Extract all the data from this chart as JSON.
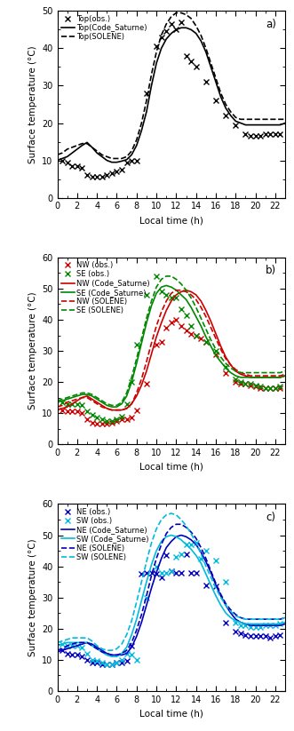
{
  "panel_a": {
    "label": "a)",
    "ylim": [
      0,
      50
    ],
    "yticks": [
      0,
      10,
      20,
      30,
      40,
      50
    ],
    "obs_x": [
      0.5,
      1.0,
      1.5,
      2.0,
      2.5,
      3.0,
      3.5,
      4.0,
      4.5,
      5.0,
      5.5,
      6.0,
      6.5,
      7.0,
      7.5,
      8.0,
      9.0,
      10.0,
      10.5,
      11.0,
      11.5,
      12.0,
      12.5,
      13.0,
      13.5,
      14.0,
      15.0,
      16.0,
      17.0,
      18.0,
      19.0,
      19.5,
      20.0,
      20.5,
      21.0,
      21.5,
      22.0,
      22.5
    ],
    "obs_y": [
      10.0,
      9.5,
      8.5,
      8.5,
      8.0,
      6.0,
      5.5,
      5.5,
      5.5,
      6.0,
      6.5,
      7.0,
      7.5,
      9.5,
      10.0,
      10.0,
      28.0,
      40.5,
      43.0,
      44.5,
      46.5,
      45.0,
      47.0,
      38.0,
      36.5,
      35.0,
      31.0,
      26.0,
      22.0,
      19.5,
      17.0,
      16.5,
      16.5,
      16.5,
      17.0,
      17.0,
      17.0,
      17.0
    ],
    "cs_x": [
      0,
      0.5,
      1.0,
      1.5,
      2.0,
      2.5,
      3.0,
      3.5,
      4.0,
      4.5,
      5.0,
      5.5,
      6.0,
      6.5,
      7.0,
      7.5,
      8.0,
      8.5,
      9.0,
      9.5,
      10.0,
      10.5,
      11.0,
      11.5,
      12.0,
      12.5,
      13.0,
      13.5,
      14.0,
      14.5,
      15.0,
      15.5,
      16.0,
      16.5,
      17.0,
      17.5,
      18.0,
      18.5,
      19.0,
      19.5,
      20.0,
      20.5,
      21.0,
      21.5,
      22.0,
      22.5,
      23.0
    ],
    "cs_y": [
      10.0,
      10.5,
      11.0,
      12.0,
      13.0,
      14.0,
      14.8,
      13.5,
      12.0,
      11.0,
      10.0,
      9.5,
      9.5,
      9.8,
      10.2,
      11.5,
      14.0,
      18.0,
      23.0,
      30.0,
      36.0,
      40.0,
      42.5,
      44.0,
      45.0,
      45.5,
      45.5,
      45.0,
      44.0,
      42.0,
      39.0,
      35.0,
      31.0,
      27.0,
      24.0,
      22.0,
      20.5,
      20.0,
      19.5,
      19.5,
      19.5,
      19.5,
      19.5,
      19.5,
      19.5,
      19.5,
      20.0
    ],
    "sol_x": [
      0,
      0.5,
      1.0,
      1.5,
      2.0,
      2.5,
      3.0,
      3.5,
      4.0,
      4.5,
      5.0,
      5.5,
      6.0,
      6.5,
      7.0,
      7.5,
      8.0,
      8.5,
      9.0,
      9.5,
      10.0,
      10.5,
      11.0,
      11.5,
      12.0,
      12.5,
      13.0,
      13.5,
      14.0,
      14.5,
      15.0,
      15.5,
      16.0,
      16.5,
      17.0,
      17.5,
      18.0,
      18.5,
      19.0,
      19.5,
      20.0,
      20.5,
      21.0,
      21.5,
      22.0,
      22.5,
      23.0
    ],
    "sol_y": [
      11.5,
      12.0,
      13.0,
      13.5,
      14.0,
      14.5,
      14.5,
      13.5,
      12.5,
      11.5,
      11.0,
      10.5,
      10.5,
      10.5,
      11.0,
      12.5,
      15.5,
      20.0,
      26.0,
      33.0,
      39.0,
      43.5,
      46.5,
      48.5,
      49.5,
      49.5,
      49.0,
      48.0,
      46.0,
      43.5,
      40.0,
      36.0,
      32.0,
      28.0,
      25.0,
      23.0,
      21.5,
      21.0,
      21.0,
      21.0,
      21.0,
      21.0,
      21.0,
      21.0,
      21.0,
      21.0,
      21.0
    ],
    "legend": [
      "Top(obs.)",
      "Top(Code_Saturne)",
      "Top(SOLENE)"
    ]
  },
  "panel_b": {
    "label": "b)",
    "ylim": [
      0,
      60
    ],
    "yticks": [
      0,
      10,
      20,
      30,
      40,
      50,
      60
    ],
    "nw_obs_x": [
      0.5,
      1.0,
      1.5,
      2.0,
      2.5,
      3.0,
      3.5,
      4.0,
      4.5,
      5.0,
      5.5,
      6.0,
      6.5,
      7.0,
      7.5,
      8.0,
      9.0,
      10.0,
      10.5,
      11.0,
      11.5,
      12.0,
      12.5,
      13.0,
      13.5,
      14.0,
      14.5,
      15.0,
      16.0,
      17.0,
      18.0,
      18.5,
      19.0,
      19.5,
      20.0,
      20.5,
      21.0,
      21.5,
      22.0,
      22.5
    ],
    "nw_obs_y": [
      11.0,
      10.5,
      10.5,
      10.5,
      10.0,
      8.0,
      7.0,
      6.5,
      6.5,
      6.5,
      7.0,
      7.5,
      8.0,
      8.0,
      8.5,
      11.0,
      19.5,
      32.0,
      33.0,
      37.5,
      39.0,
      40.0,
      38.0,
      36.5,
      35.5,
      35.0,
      34.0,
      33.0,
      29.0,
      23.0,
      20.0,
      19.5,
      19.5,
      19.0,
      18.5,
      18.0,
      18.0,
      18.0,
      18.0,
      18.0
    ],
    "se_obs_x": [
      0.5,
      1.0,
      1.5,
      2.0,
      2.5,
      3.0,
      3.5,
      4.0,
      4.5,
      5.0,
      5.5,
      6.0,
      6.5,
      7.0,
      7.5,
      8.0,
      9.0,
      10.0,
      10.5,
      11.0,
      11.5,
      12.0,
      12.5,
      13.0,
      13.5,
      14.0,
      15.0,
      16.0,
      17.0,
      18.0,
      18.5,
      19.0,
      19.5,
      20.0,
      20.5,
      21.0,
      21.5,
      22.0,
      22.5
    ],
    "se_obs_y": [
      13.5,
      13.0,
      13.0,
      13.0,
      12.5,
      10.5,
      9.5,
      8.5,
      8.0,
      7.5,
      7.5,
      8.0,
      9.0,
      13.0,
      20.0,
      32.0,
      48.0,
      54.0,
      49.0,
      48.0,
      47.0,
      47.0,
      43.5,
      41.5,
      38.0,
      35.0,
      33.0,
      30.0,
      25.0,
      21.0,
      20.0,
      19.5,
      19.5,
      19.0,
      18.5,
      18.0,
      18.0,
      18.0,
      18.5
    ],
    "nw_cs_x": [
      0,
      0.5,
      1.0,
      1.5,
      2.0,
      2.5,
      3.0,
      3.5,
      4.0,
      4.5,
      5.0,
      5.5,
      6.0,
      6.5,
      7.0,
      7.5,
      8.0,
      8.5,
      9.0,
      9.5,
      10.0,
      10.5,
      11.0,
      11.5,
      12.0,
      12.5,
      13.0,
      13.5,
      14.0,
      14.5,
      15.0,
      15.5,
      16.0,
      16.5,
      17.0,
      17.5,
      18.0,
      18.5,
      19.0,
      19.5,
      20.0,
      20.5,
      21.0,
      21.5,
      22.0,
      22.5,
      23.0
    ],
    "nw_cs_y": [
      11.0,
      11.5,
      12.0,
      13.0,
      14.0,
      15.0,
      15.5,
      14.5,
      13.5,
      12.5,
      11.5,
      11.0,
      11.0,
      11.0,
      11.5,
      13.0,
      15.5,
      19.0,
      23.5,
      29.0,
      34.5,
      39.0,
      43.0,
      46.0,
      48.0,
      49.0,
      49.5,
      49.0,
      48.0,
      46.0,
      43.0,
      39.5,
      35.5,
      31.5,
      28.0,
      25.5,
      23.5,
      22.5,
      22.0,
      21.5,
      21.5,
      21.5,
      21.5,
      21.5,
      21.5,
      21.5,
      22.0
    ],
    "se_cs_x": [
      0,
      0.5,
      1.0,
      1.5,
      2.0,
      2.5,
      3.0,
      3.5,
      4.0,
      4.5,
      5.0,
      5.5,
      6.0,
      6.5,
      7.0,
      7.5,
      8.0,
      8.5,
      9.0,
      9.5,
      10.0,
      10.5,
      11.0,
      11.5,
      12.0,
      12.5,
      13.0,
      13.5,
      14.0,
      14.5,
      15.0,
      15.5,
      16.0,
      16.5,
      17.0,
      17.5,
      18.0,
      18.5,
      19.0,
      19.5,
      20.0,
      20.5,
      21.0,
      21.5,
      22.0,
      22.5,
      23.0
    ],
    "se_cs_y": [
      13.5,
      14.0,
      14.5,
      15.0,
      15.5,
      16.0,
      16.0,
      15.5,
      14.5,
      13.5,
      12.5,
      12.0,
      12.0,
      13.0,
      15.5,
      20.0,
      26.0,
      32.5,
      39.0,
      44.5,
      48.5,
      50.5,
      51.0,
      50.5,
      49.5,
      48.0,
      46.5,
      44.0,
      41.0,
      38.0,
      34.5,
      31.5,
      28.5,
      26.5,
      24.5,
      23.0,
      22.0,
      21.5,
      21.5,
      21.5,
      21.5,
      21.5,
      21.5,
      21.5,
      21.5,
      21.5,
      22.0
    ],
    "nw_sol_x": [
      0,
      0.5,
      1.0,
      1.5,
      2.0,
      2.5,
      3.0,
      3.5,
      4.0,
      4.5,
      5.0,
      5.5,
      6.0,
      6.5,
      7.0,
      7.5,
      8.0,
      8.5,
      9.0,
      9.5,
      10.0,
      10.5,
      11.0,
      11.5,
      12.0,
      12.5,
      13.0,
      13.5,
      14.0,
      14.5,
      15.0,
      15.5,
      16.0,
      16.5,
      17.0,
      17.5,
      18.0,
      18.5,
      19.0,
      19.5,
      20.0,
      20.5,
      21.0,
      21.5,
      22.0,
      22.5,
      23.0
    ],
    "nw_sol_y": [
      12.0,
      12.5,
      13.5,
      14.0,
      14.5,
      15.0,
      15.0,
      14.0,
      13.0,
      12.0,
      11.5,
      11.0,
      11.0,
      11.0,
      11.5,
      13.0,
      16.5,
      21.0,
      26.5,
      32.5,
      38.0,
      42.5,
      46.0,
      48.5,
      49.5,
      49.5,
      49.0,
      48.0,
      46.5,
      44.0,
      41.0,
      37.5,
      34.0,
      30.5,
      27.5,
      25.5,
      24.0,
      23.0,
      22.5,
      22.0,
      22.0,
      22.0,
      22.0,
      22.0,
      22.0,
      22.0,
      22.5
    ],
    "se_sol_x": [
      0,
      0.5,
      1.0,
      1.5,
      2.0,
      2.5,
      3.0,
      3.5,
      4.0,
      4.5,
      5.0,
      5.5,
      6.0,
      6.5,
      7.0,
      7.5,
      8.0,
      8.5,
      9.0,
      9.5,
      10.0,
      10.5,
      11.0,
      11.5,
      12.0,
      12.5,
      13.0,
      13.5,
      14.0,
      14.5,
      15.0,
      15.5,
      16.0,
      16.5,
      17.0,
      17.5,
      18.0,
      18.5,
      19.0,
      19.5,
      20.0,
      20.5,
      21.0,
      21.5,
      22.0,
      22.5,
      23.0
    ],
    "se_sol_y": [
      14.0,
      14.5,
      15.0,
      15.5,
      16.0,
      16.5,
      16.5,
      16.0,
      15.0,
      14.0,
      13.0,
      12.5,
      12.5,
      13.5,
      16.5,
      21.5,
      27.5,
      34.0,
      40.5,
      46.0,
      50.5,
      53.0,
      54.0,
      54.0,
      53.0,
      51.5,
      49.5,
      47.0,
      44.0,
      40.5,
      37.0,
      33.5,
      30.5,
      28.0,
      26.0,
      24.5,
      23.5,
      23.0,
      23.0,
      23.0,
      23.0,
      23.0,
      23.0,
      23.0,
      23.0,
      23.0,
      23.5
    ],
    "legend": [
      "NW (obs.)",
      "SE (obs.)",
      "NW (Code_Saturne)",
      "SE (Code_Saturne)",
      "NW (SOLENE)",
      "SE (SOLENE)"
    ]
  },
  "panel_c": {
    "label": "c)",
    "ylim": [
      0,
      60
    ],
    "yticks": [
      0,
      10,
      20,
      30,
      40,
      50,
      60
    ],
    "ne_obs_x": [
      0.5,
      1.0,
      1.5,
      2.0,
      2.5,
      3.0,
      3.5,
      4.0,
      4.5,
      5.0,
      5.5,
      6.0,
      6.5,
      7.0,
      7.5,
      8.5,
      9.0,
      9.5,
      10.0,
      10.5,
      11.0,
      11.5,
      12.0,
      12.5,
      13.0,
      13.5,
      14.0,
      15.0,
      16.0,
      17.0,
      18.0,
      18.5,
      19.0,
      19.5,
      20.0,
      20.5,
      21.0,
      21.5,
      22.0,
      22.5
    ],
    "ne_obs_y": [
      13.0,
      12.0,
      11.5,
      11.5,
      11.0,
      10.0,
      9.0,
      9.0,
      8.5,
      8.5,
      8.5,
      9.0,
      9.0,
      9.5,
      14.5,
      37.5,
      38.0,
      38.0,
      37.5,
      36.5,
      43.5,
      38.5,
      38.0,
      38.0,
      44.0,
      38.0,
      38.0,
      34.0,
      33.5,
      22.0,
      19.0,
      18.5,
      18.0,
      17.5,
      17.5,
      17.5,
      17.5,
      17.0,
      17.5,
      18.0
    ],
    "sw_obs_x": [
      0.5,
      1.0,
      1.5,
      2.0,
      2.5,
      3.0,
      3.5,
      4.0,
      4.5,
      5.0,
      5.5,
      6.0,
      6.5,
      7.0,
      7.5,
      8.0,
      9.0,
      10.0,
      10.5,
      11.0,
      11.5,
      12.0,
      12.5,
      13.0,
      13.5,
      14.0,
      14.5,
      15.0,
      16.0,
      17.0,
      18.0,
      18.5,
      19.0,
      19.5,
      20.0,
      20.5,
      21.0,
      21.5,
      22.0,
      22.5
    ],
    "sw_obs_y": [
      15.0,
      14.5,
      14.5,
      14.5,
      14.0,
      12.0,
      10.0,
      9.5,
      9.0,
      8.5,
      8.5,
      9.0,
      10.0,
      12.0,
      11.5,
      10.0,
      30.0,
      40.0,
      38.0,
      38.0,
      38.5,
      43.0,
      44.0,
      47.0,
      47.0,
      47.5,
      42.5,
      45.0,
      42.0,
      35.0,
      22.0,
      21.0,
      21.0,
      20.5,
      20.5,
      20.5,
      21.0,
      21.0,
      21.0,
      21.5
    ],
    "ne_cs_x": [
      0,
      0.5,
      1.0,
      1.5,
      2.0,
      2.5,
      3.0,
      3.5,
      4.0,
      4.5,
      5.0,
      5.5,
      6.0,
      6.5,
      7.0,
      7.5,
      8.0,
      8.5,
      9.0,
      9.5,
      10.0,
      10.5,
      11.0,
      11.5,
      12.0,
      12.5,
      13.0,
      13.5,
      14.0,
      14.5,
      15.0,
      15.5,
      16.0,
      16.5,
      17.0,
      17.5,
      18.0,
      18.5,
      19.0,
      19.5,
      20.0,
      20.5,
      21.0,
      21.5,
      22.0,
      22.5,
      23.0
    ],
    "ne_cs_y": [
      12.5,
      13.0,
      13.5,
      14.0,
      14.5,
      15.0,
      15.5,
      15.0,
      14.0,
      13.0,
      12.0,
      11.5,
      11.5,
      11.5,
      12.0,
      14.0,
      17.5,
      22.0,
      27.5,
      33.0,
      38.0,
      42.5,
      46.0,
      48.0,
      49.5,
      50.0,
      49.5,
      48.5,
      47.0,
      44.5,
      41.5,
      38.0,
      34.0,
      30.5,
      27.5,
      25.0,
      23.0,
      22.0,
      21.5,
      21.0,
      21.0,
      21.0,
      21.0,
      21.0,
      21.0,
      21.0,
      21.5
    ],
    "sw_cs_x": [
      0,
      0.5,
      1.0,
      1.5,
      2.0,
      2.5,
      3.0,
      3.5,
      4.0,
      4.5,
      5.0,
      5.5,
      6.0,
      6.5,
      7.0,
      7.5,
      8.0,
      8.5,
      9.0,
      9.5,
      10.0,
      10.5,
      11.0,
      11.5,
      12.0,
      12.5,
      13.0,
      13.5,
      14.0,
      14.5,
      15.0,
      15.5,
      16.0,
      16.5,
      17.0,
      17.5,
      18.0,
      18.5,
      19.0,
      19.5,
      20.0,
      20.5,
      21.0,
      21.5,
      22.0,
      22.5,
      23.0
    ],
    "sw_cs_y": [
      14.5,
      15.0,
      15.5,
      15.5,
      15.5,
      15.5,
      15.5,
      14.5,
      13.5,
      12.5,
      11.5,
      11.0,
      11.0,
      12.0,
      14.0,
      18.0,
      23.0,
      29.0,
      35.0,
      40.5,
      45.0,
      48.0,
      49.5,
      50.0,
      49.5,
      48.5,
      47.0,
      45.5,
      43.5,
      41.0,
      37.5,
      34.0,
      30.5,
      27.5,
      25.0,
      23.5,
      22.5,
      22.0,
      21.5,
      21.5,
      21.5,
      21.5,
      21.5,
      21.5,
      21.5,
      21.5,
      22.0
    ],
    "ne_sol_x": [
      0,
      0.5,
      1.0,
      1.5,
      2.0,
      2.5,
      3.0,
      3.5,
      4.0,
      4.5,
      5.0,
      5.5,
      6.0,
      6.5,
      7.0,
      7.5,
      8.0,
      8.5,
      9.0,
      9.5,
      10.0,
      10.5,
      11.0,
      11.5,
      12.0,
      12.5,
      13.0,
      13.5,
      14.0,
      14.5,
      15.0,
      15.5,
      16.0,
      16.5,
      17.0,
      17.5,
      18.0,
      18.5,
      19.0,
      19.5,
      20.0,
      20.5,
      21.0,
      21.5,
      22.0,
      22.5,
      23.0
    ],
    "ne_sol_y": [
      13.0,
      13.5,
      14.5,
      15.0,
      15.5,
      15.5,
      15.5,
      14.5,
      13.5,
      12.5,
      12.0,
      11.5,
      11.5,
      12.0,
      13.0,
      15.5,
      19.5,
      24.5,
      30.5,
      37.0,
      42.5,
      47.0,
      50.5,
      52.5,
      53.5,
      53.5,
      52.5,
      51.0,
      49.0,
      46.0,
      42.5,
      38.5,
      34.5,
      31.0,
      28.0,
      26.0,
      24.5,
      23.5,
      23.0,
      23.0,
      23.0,
      23.0,
      23.0,
      23.0,
      23.0,
      23.0,
      23.5
    ],
    "sw_sol_x": [
      0,
      0.5,
      1.0,
      1.5,
      2.0,
      2.5,
      3.0,
      3.5,
      4.0,
      4.5,
      5.0,
      5.5,
      6.0,
      6.5,
      7.0,
      7.5,
      8.0,
      8.5,
      9.0,
      9.5,
      10.0,
      10.5,
      11.0,
      11.5,
      12.0,
      12.5,
      13.0,
      13.5,
      14.0,
      14.5,
      15.0,
      15.5,
      16.0,
      16.5,
      17.0,
      17.5,
      18.0,
      18.5,
      19.0,
      19.5,
      20.0,
      20.5,
      21.0,
      21.5,
      22.0,
      22.5,
      23.0
    ],
    "sw_sol_y": [
      15.5,
      16.0,
      16.5,
      17.0,
      17.0,
      17.0,
      17.0,
      16.0,
      14.5,
      13.5,
      13.0,
      13.0,
      13.5,
      15.0,
      18.0,
      22.5,
      28.5,
      35.0,
      41.5,
      47.5,
      52.0,
      55.0,
      56.5,
      57.0,
      56.5,
      55.0,
      53.0,
      50.5,
      47.5,
      44.0,
      40.0,
      36.5,
      33.0,
      30.0,
      27.5,
      25.5,
      24.0,
      23.5,
      23.0,
      23.0,
      23.0,
      23.0,
      23.0,
      23.0,
      23.0,
      23.0,
      23.5
    ],
    "legend": [
      "NE (obs.)",
      "SW (obs.)",
      "NE (Code_Saturne)",
      "SW (Code_Saturne)",
      "NE (SOLENE)",
      "SW (SOLENE)"
    ]
  },
  "xticks": [
    0,
    2,
    4,
    6,
    8,
    10,
    12,
    14,
    16,
    18,
    20,
    22
  ],
  "xlabel": "Local time (h)",
  "ylabel": "Surface temperature (°C)",
  "color_black": "#000000",
  "color_red": "#cc0000",
  "color_green": "#008800",
  "color_dark_blue": "#0000bb",
  "color_cyan": "#00bbdd",
  "lw": 1.2
}
